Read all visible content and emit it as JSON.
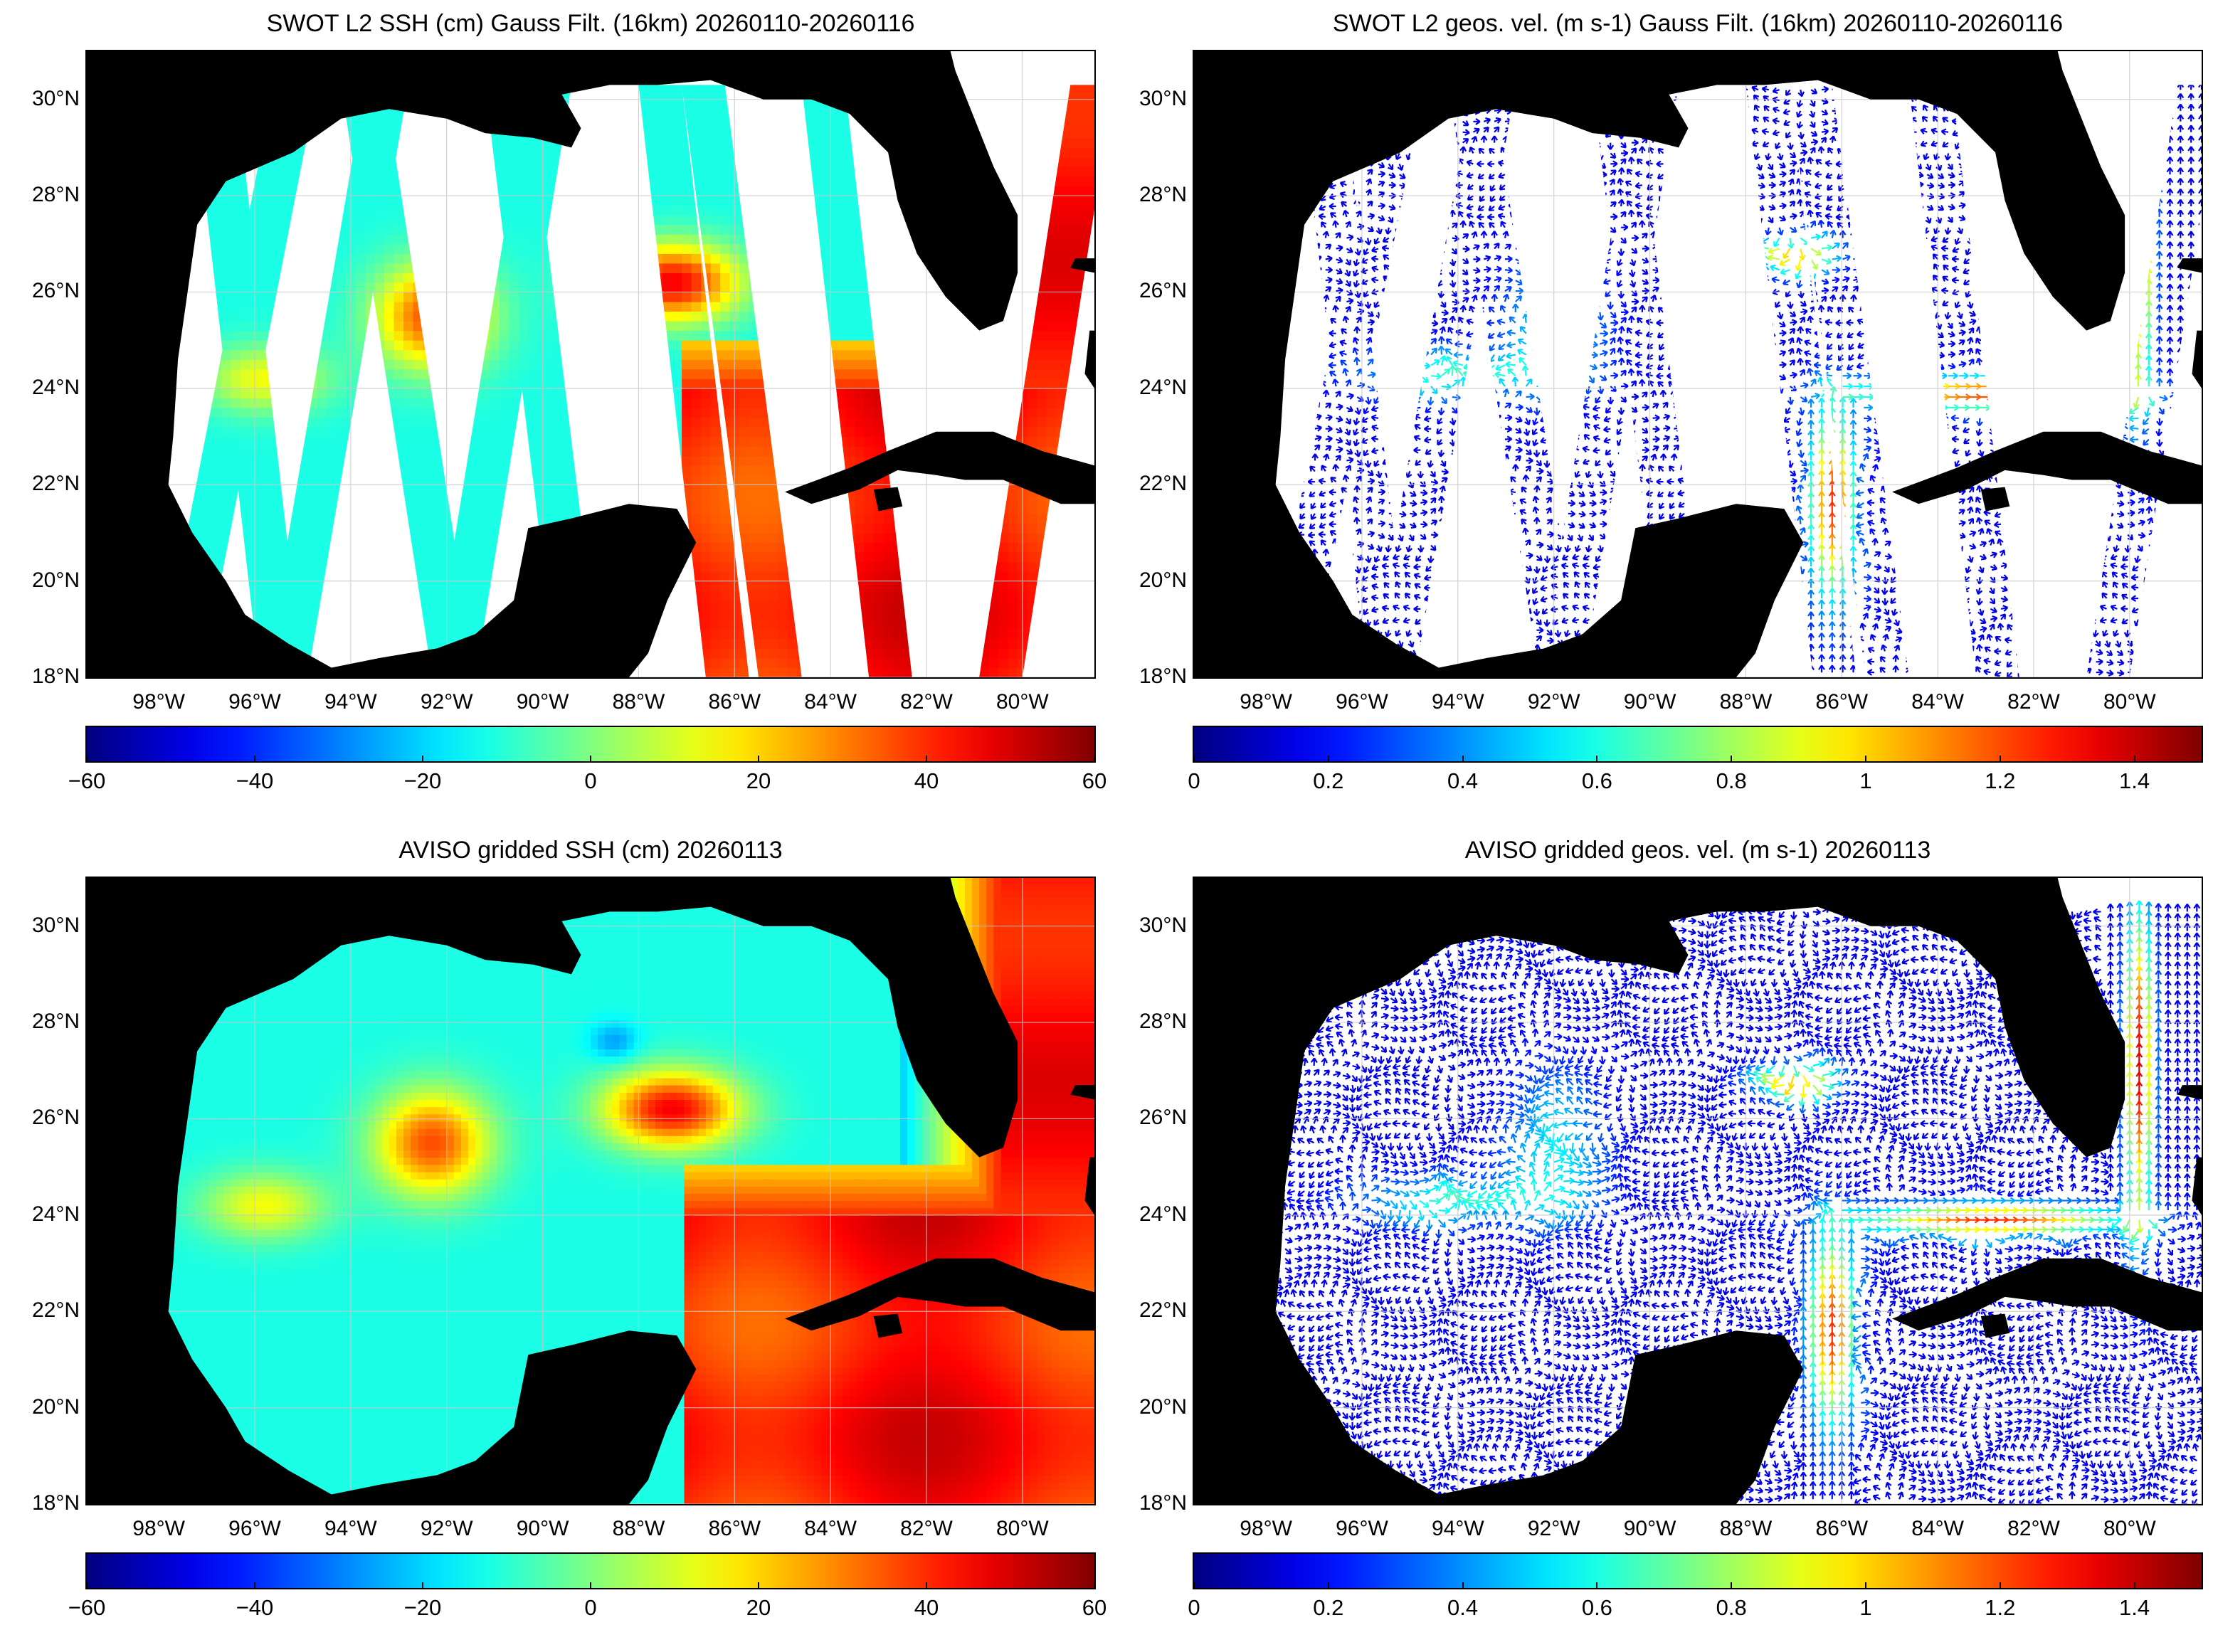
{
  "panels": [
    {
      "title": "SWOT L2 SSH (cm) Gauss Filt. (16km) 20260110-20260116",
      "kind": "ssh-swaths",
      "lat_ticks": [
        "30°N",
        "28°N",
        "26°N",
        "24°N",
        "22°N",
        "20°N",
        "18°N"
      ],
      "lon_ticks": [
        "98°W",
        "96°W",
        "94°W",
        "92°W",
        "90°W",
        "88°W",
        "86°W",
        "84°W",
        "82°W",
        "80°W"
      ],
      "colorbar": {
        "ticks": [
          "−60",
          "−40",
          "−20",
          "0",
          "20",
          "40",
          "60"
        ],
        "min": -60,
        "max": 60,
        "colormap": "jet"
      }
    },
    {
      "title": "SWOT L2 geos. vel. (m s-1) Gauss Filt. (16km) 20260110-20260116",
      "kind": "vel-swaths",
      "lat_ticks": [
        "30°N",
        "28°N",
        "26°N",
        "24°N",
        "22°N",
        "20°N",
        "18°N"
      ],
      "lon_ticks": [
        "98°W",
        "96°W",
        "94°W",
        "92°W",
        "90°W",
        "88°W",
        "86°W",
        "84°W",
        "82°W",
        "80°W"
      ],
      "colorbar": {
        "ticks": [
          "0",
          "0.2",
          "0.4",
          "0.6",
          "0.8",
          "1",
          "1.2",
          "1.4"
        ],
        "min": 0,
        "max": 1.5,
        "colormap": "jet"
      }
    },
    {
      "title": "AVISO gridded SSH (cm) 20260113",
      "kind": "ssh-grid",
      "lat_ticks": [
        "30°N",
        "28°N",
        "26°N",
        "24°N",
        "22°N",
        "20°N",
        "18°N"
      ],
      "lon_ticks": [
        "98°W",
        "96°W",
        "94°W",
        "92°W",
        "90°W",
        "88°W",
        "86°W",
        "84°W",
        "82°W",
        "80°W"
      ],
      "colorbar": {
        "ticks": [
          "−60",
          "−40",
          "−20",
          "0",
          "20",
          "40",
          "60"
        ],
        "min": -60,
        "max": 60,
        "colormap": "jet"
      }
    },
    {
      "title": "AVISO gridded geos. vel. (m s-1)  20260113",
      "kind": "vel-grid",
      "lat_ticks": [
        "30°N",
        "28°N",
        "26°N",
        "24°N",
        "22°N",
        "20°N",
        "18°N"
      ],
      "lon_ticks": [
        "98°W",
        "96°W",
        "94°W",
        "92°W",
        "90°W",
        "88°W",
        "86°W",
        "84°W",
        "82°W",
        "80°W"
      ],
      "colorbar": {
        "ticks": [
          "0",
          "0.2",
          "0.4",
          "0.6",
          "0.8",
          "1",
          "1.2",
          "1.4"
        ],
        "min": 0,
        "max": 1.5,
        "colormap": "jet"
      }
    }
  ],
  "map_extent": {
    "lon_min": -99.5,
    "lon_max": -78.5,
    "lat_min": 18,
    "lat_max": 31
  },
  "colors": {
    "land": "#000000",
    "ocean_nodata": "#ffffff",
    "grid": "#c8c8c8"
  }
}
